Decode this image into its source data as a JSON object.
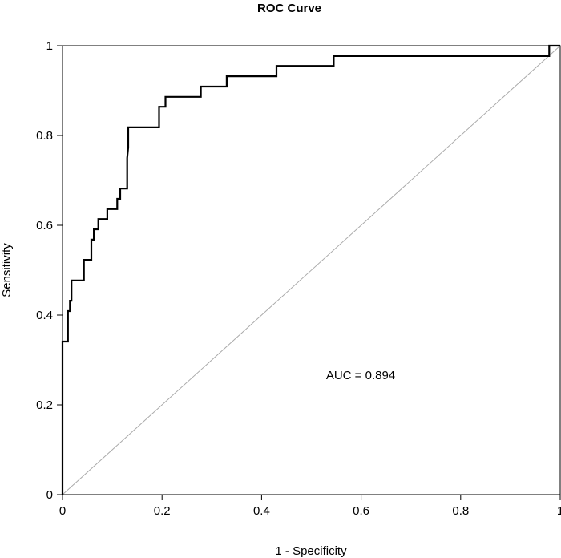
{
  "chart_data": {
    "type": "line",
    "title": "ROC Curve",
    "xlabel": "1 - Specificity",
    "ylabel": "Sensitivity",
    "xlim": [
      0,
      1
    ],
    "ylim": [
      0,
      1
    ],
    "x_ticks": [
      0,
      0.2,
      0.4,
      0.6,
      0.8,
      1
    ],
    "x_tick_labels": [
      "0",
      "0.2",
      "0.4",
      "0.6",
      "0.8",
      "1"
    ],
    "y_ticks": [
      0,
      0.2,
      0.4,
      0.6,
      0.8,
      1
    ],
    "y_tick_labels": [
      "0",
      "0.2",
      "0.4",
      "0.6",
      "0.8",
      "1"
    ],
    "grid": false,
    "annotation": "AUC = 0.894",
    "reference_line": {
      "x": [
        0,
        1
      ],
      "y": [
        0,
        1
      ],
      "color": "#aaaaaa"
    },
    "series": [
      {
        "color": "#000000",
        "step": true,
        "x": [
          0,
          0,
          0.011,
          0.011,
          0.011,
          0.011,
          0.015,
          0.015,
          0.015,
          0.018,
          0.018,
          0.043,
          0.043,
          0.058,
          0.058,
          0.063,
          0.063,
          0.072,
          0.072,
          0.09,
          0.09,
          0.11,
          0.11,
          0.116,
          0.116,
          0.13,
          0.13,
          0.132,
          0.132,
          0.194,
          0.194,
          0.207,
          0.207,
          0.278,
          0.278,
          0.33,
          0.33,
          0.43,
          0.43,
          0.545,
          0.545,
          0.978,
          0.978,
          1
        ],
        "y": [
          0,
          0.341,
          0.341,
          0.364,
          0.386,
          0.409,
          0.409,
          0.432,
          0.432,
          0.432,
          0.477,
          0.477,
          0.523,
          0.523,
          0.568,
          0.568,
          0.591,
          0.591,
          0.614,
          0.614,
          0.636,
          0.636,
          0.659,
          0.659,
          0.682,
          0.682,
          0.75,
          0.773,
          0.818,
          0.818,
          0.864,
          0.864,
          0.886,
          0.886,
          0.909,
          0.909,
          0.932,
          0.932,
          0.955,
          0.955,
          0.977,
          0.977,
          1,
          1
        ]
      }
    ]
  }
}
